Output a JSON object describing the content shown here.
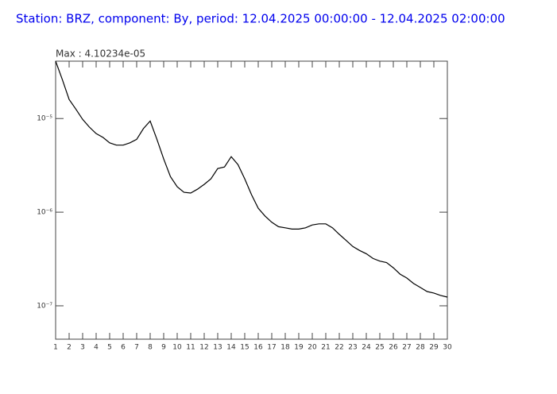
{
  "chart_data": {
    "type": "line",
    "title": "Station: BRZ, component: By, period: 12.04.2025 00:00:00 - 12.04.2025 02:00:00",
    "annotation": "Max : 4.10234e-05",
    "color": "#000000",
    "title_color": "#0000ee",
    "log_y": true,
    "x": [
      1,
      1.5,
      2,
      2.5,
      3,
      3.5,
      4,
      4.5,
      5,
      5.5,
      6,
      6.5,
      7,
      7.5,
      8,
      8.5,
      9,
      9.5,
      10,
      10.5,
      11,
      11.5,
      12,
      12.5,
      13,
      13.5,
      14,
      14.5,
      15,
      15.5,
      16,
      16.5,
      17,
      17.5,
      18,
      18.5,
      19,
      19.5,
      20,
      20.5,
      21,
      21.5,
      22,
      22.5,
      23,
      23.5,
      24,
      24.5,
      25,
      25.5,
      26,
      26.5,
      27,
      27.5,
      28,
      28.5,
      29,
      29.5,
      30
    ],
    "values": [
      4.1e-05,
      2.6e-05,
      1.6e-05,
      1.26e-05,
      9.8e-06,
      8.1e-06,
      6.9e-06,
      6.3e-06,
      5.5e-06,
      5.2e-06,
      5.2e-06,
      5.5e-06,
      6e-06,
      7.8e-06,
      9.4e-06,
      6e-06,
      3.7e-06,
      2.4e-06,
      1.87e-06,
      1.63e-06,
      1.6e-06,
      1.76e-06,
      1.98e-06,
      2.27e-06,
      2.92e-06,
      3.04e-06,
      3.92e-06,
      3.22e-06,
      2.27e-06,
      1.54e-06,
      1.1e-06,
      9.1e-07,
      7.8e-07,
      7e-07,
      6.8e-07,
      6.6e-07,
      6.6e-07,
      6.8e-07,
      7.3e-07,
      7.5e-07,
      7.5e-07,
      6.8e-07,
      5.8e-07,
      5e-07,
      4.3e-07,
      3.9e-07,
      3.6e-07,
      3.2e-07,
      3e-07,
      2.9e-07,
      2.55e-07,
      2.18e-07,
      1.98e-07,
      1.73e-07,
      1.57e-07,
      1.42e-07,
      1.37e-07,
      1.29e-07,
      1.24e-07
    ],
    "xlim": [
      1,
      30
    ],
    "xticks": [
      1,
      2,
      3,
      4,
      5,
      6,
      7,
      8,
      9,
      10,
      11,
      12,
      13,
      14,
      15,
      16,
      17,
      18,
      19,
      20,
      21,
      22,
      23,
      24,
      25,
      26,
      27,
      28,
      29,
      30
    ],
    "ylim": [
      4.4e-08,
      4.1e-05
    ],
    "yticks": [
      {
        "value": 1e-07,
        "label": "10⁻⁷"
      },
      {
        "value": 1e-06,
        "label": "10⁻⁶"
      },
      {
        "value": 1e-05,
        "label": "10⁻⁵"
      }
    ]
  }
}
